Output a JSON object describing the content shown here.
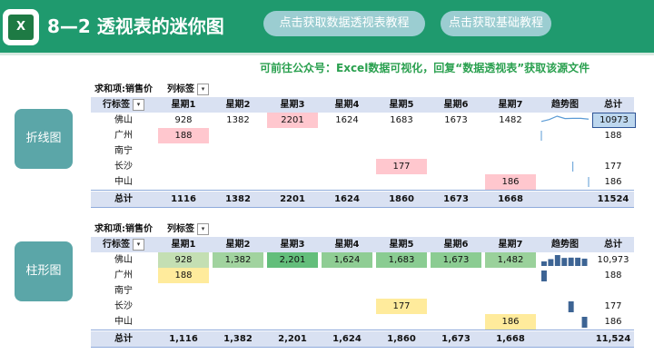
{
  "header": {
    "logo_text": "X",
    "title": "8—2 透视表的迷你图",
    "btn_pivot": "点击获取数据透视表教程",
    "btn_basic": "点击获取基础教程"
  },
  "notice": "可前往公众号：Excel数据可视化，回复“数据透视表”获取该源文件",
  "side_buttons": {
    "line": "折线图",
    "bar": "柱形图"
  },
  "colors": {
    "header": "#1f9a6e",
    "pink": "#ffc7ce",
    "yellow": "#ffeb9c",
    "spark": "#3d6494"
  },
  "pivot_line": {
    "corner": "求和项:销售价",
    "col_label": "列标签",
    "row_label": "行标签",
    "columns": [
      "星期1",
      "星期2",
      "星期3",
      "星期4",
      "星期5",
      "星期6",
      "星期7",
      "趋势图",
      "总计"
    ],
    "rows": [
      {
        "name": "佛山",
        "values": [
          "928",
          "1382",
          "2201",
          "1624",
          "1683",
          "1673",
          "1482"
        ],
        "total": "10973"
      },
      {
        "name": "广州",
        "values": [
          "188",
          "",
          "",
          "",
          "",
          "",
          ""
        ],
        "total": "188"
      },
      {
        "name": "南宁",
        "values": [
          "",
          "",
          "",
          "",
          "",
          "",
          ""
        ],
        "total": ""
      },
      {
        "name": "长沙",
        "values": [
          "",
          "",
          "",
          "",
          "177",
          "",
          ""
        ],
        "total": "177"
      },
      {
        "name": "中山",
        "values": [
          "",
          "",
          "",
          "",
          "",
          "",
          "186"
        ],
        "total": "186"
      }
    ],
    "total_label": "总计",
    "totals": [
      "1116",
      "1382",
      "2201",
      "1624",
      "1860",
      "1673",
      "1668"
    ],
    "grand_total": "11524"
  },
  "pivot_bar": {
    "corner": "求和项:销售价",
    "col_label": "列标签",
    "row_label": "行标签",
    "columns": [
      "星期1",
      "星期2",
      "星期3",
      "星期4",
      "星期5",
      "星期6",
      "星期7",
      "趋势图",
      "总计"
    ],
    "rows": [
      {
        "name": "佛山",
        "values": [
          "928",
          "1,382",
          "2,201",
          "1,624",
          "1,683",
          "1,673",
          "1,482"
        ],
        "total": "10,973"
      },
      {
        "name": "广州",
        "values": [
          "188",
          "",
          "",
          "",
          "",
          "",
          ""
        ],
        "total": "188"
      },
      {
        "name": "南宁",
        "values": [
          "",
          "",
          "",
          "",
          "",
          "",
          ""
        ],
        "total": ""
      },
      {
        "name": "长沙",
        "values": [
          "",
          "",
          "",
          "",
          "177",
          "",
          ""
        ],
        "total": "177"
      },
      {
        "name": "中山",
        "values": [
          "",
          "",
          "",
          "",
          "",
          "",
          "186"
        ],
        "total": "186"
      }
    ],
    "total_label": "总计",
    "totals": [
      "1,116",
      "1,382",
      "2,201",
      "1,624",
      "1,860",
      "1,673",
      "1,668"
    ],
    "grand_total": "11,524"
  }
}
